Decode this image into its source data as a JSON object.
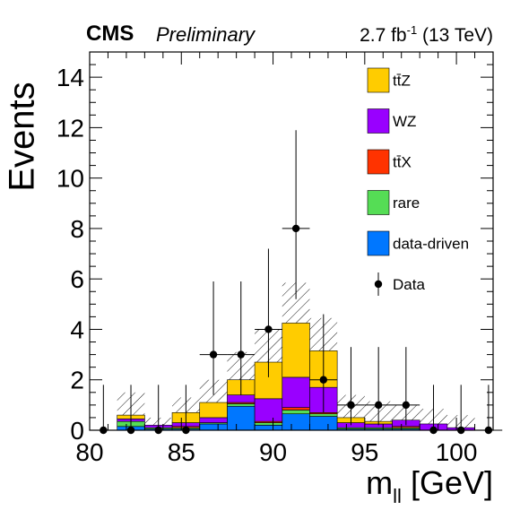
{
  "header": {
    "experiment": "CMS",
    "status": "Preliminary",
    "lumi_value": "2.7 fb",
    "lumi_sup": "-1",
    "lumi_energy": " (13 TeV)"
  },
  "axes": {
    "ylabel": "Events",
    "xlabel_main": "m",
    "xlabel_sub": "ll",
    "xlabel_unit": " [GeV]"
  },
  "colors": {
    "ttZ": "#ffcc00",
    "WZ": "#9900ff",
    "ttX": "#ff3300",
    "rare": "#55dd55",
    "data_driven": "#0077ff"
  },
  "chart_data": {
    "type": "bar",
    "stacked": true,
    "xlim": [
      80,
      102
    ],
    "ylim": [
      0,
      15
    ],
    "xticks": [
      80,
      85,
      90,
      95,
      100
    ],
    "yticks": [
      0,
      2,
      4,
      6,
      8,
      10,
      12,
      14
    ],
    "bin_edges": [
      81.5,
      83,
      84.5,
      86,
      87.5,
      89,
      90.5,
      92,
      93.5,
      95,
      96.5,
      98,
      99.5,
      101
    ],
    "series": [
      {
        "name": "data-driven",
        "key": "data_driven",
        "values": [
          0.15,
          0.05,
          0.05,
          0.25,
          0.95,
          0.2,
          0.65,
          0.55,
          0.05,
          0.05,
          0.05,
          0.0,
          0.0
        ]
      },
      {
        "name": "rare",
        "key": "rare",
        "values": [
          0.2,
          0.05,
          0.05,
          0.05,
          0.1,
          0.1,
          0.15,
          0.1,
          0.05,
          0.05,
          0.05,
          0.0,
          0.0
        ]
      },
      {
        "name": "tt̄X",
        "key": "ttX",
        "values": [
          0.0,
          0.0,
          0.05,
          0.0,
          0.05,
          0.05,
          0.1,
          0.05,
          0.0,
          0.0,
          0.05,
          0.0,
          0.0
        ]
      },
      {
        "name": "WZ",
        "key": "WZ",
        "values": [
          0.1,
          0.1,
          0.15,
          0.2,
          0.3,
          0.9,
          1.2,
          1.0,
          0.2,
          0.15,
          0.25,
          0.25,
          0.1
        ]
      },
      {
        "name": "tt̄Z",
        "key": "ttZ",
        "values": [
          0.15,
          0.0,
          0.4,
          0.6,
          0.6,
          1.45,
          2.15,
          1.45,
          0.2,
          0.1,
          0.0,
          0.0,
          0.0
        ]
      }
    ],
    "uncertainty_halfwidth": [
      0.9,
      0.3,
      0.6,
      0.9,
      1.1,
      1.3,
      1.6,
      1.3,
      0.9,
      0.8,
      0.6,
      0.6,
      0.5
    ],
    "data": {
      "name": "Data",
      "x": [
        80.75,
        82.25,
        83.75,
        85.25,
        86.75,
        88.25,
        89.75,
        91.25,
        92.75,
        94.25,
        95.75,
        97.25,
        98.75,
        100.25,
        101.75
      ],
      "y": [
        0,
        0,
        0,
        0,
        3,
        3,
        4,
        8,
        2,
        1,
        1,
        1,
        0,
        0,
        0
      ],
      "err_up": [
        1.8,
        1.8,
        1.8,
        1.8,
        2.9,
        2.9,
        3.2,
        3.9,
        2.6,
        2.3,
        2.3,
        2.3,
        1.8,
        1.8,
        1.8
      ],
      "err_down": [
        0,
        0,
        0,
        0,
        1.6,
        1.6,
        1.9,
        2.8,
        1.3,
        0.8,
        0.8,
        0.8,
        0,
        0,
        0
      ]
    },
    "legend": {
      "placement": "top-right",
      "entries": [
        "tt̄Z",
        "WZ",
        "tt̄X",
        "rare",
        "data-driven",
        "Data"
      ]
    },
    "grid": false
  }
}
